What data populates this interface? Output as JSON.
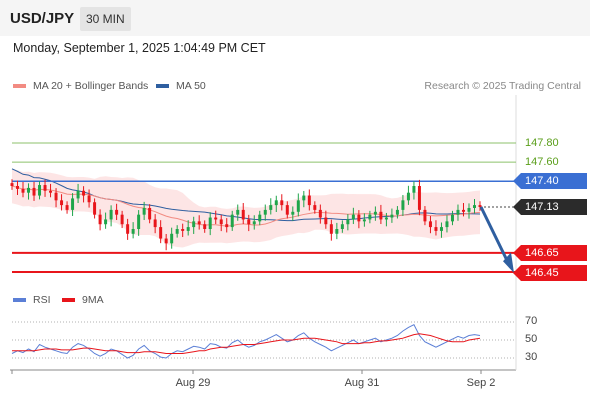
{
  "header": {
    "symbol": "USD/JPY",
    "timeframe": "30 MIN"
  },
  "datetime": "Monday, September 1, 2025 1:04:49 PM CET",
  "legend": {
    "items": [
      {
        "label": "MA 20 + Bollinger Bands",
        "color": "#f28b82"
      },
      {
        "label": "MA 50",
        "color": "#2f5fa0"
      }
    ],
    "credit": "Research © 2025 Trading Central"
  },
  "rsi_legend": {
    "items": [
      {
        "label": "RSI",
        "color": "#5b7fd6"
      },
      {
        "label": "9MA",
        "color": "#e8151b"
      }
    ]
  },
  "levels": {
    "r2": "147.80",
    "r1": "147.60",
    "pivot": "147.40",
    "last": "147.13",
    "s1": "146.65",
    "s2": "146.45"
  },
  "rsi_ticks": [
    "70",
    "50",
    "30"
  ],
  "x_ticks": [
    "Aug 29",
    "Aug 31",
    "Sep 2"
  ],
  "colors": {
    "up": "#1fa54a",
    "down": "#e8151b",
    "band": "#fde0e0",
    "ma20": "#f28b82",
    "ma50": "#2f5fa0",
    "support": "#e8151b",
    "pivot": "#3a6fd3",
    "resistance": "#8cc26b"
  },
  "chart_data": {
    "type": "candlestick",
    "price_range": [
      146.3,
      148.05
    ],
    "rsi_range": [
      20,
      80
    ],
    "horizontal_levels": [
      147.8,
      147.6,
      147.4,
      147.13,
      146.65,
      146.45
    ],
    "closes": [
      147.35,
      147.32,
      147.28,
      147.33,
      147.25,
      147.36,
      147.3,
      147.28,
      147.2,
      147.15,
      147.1,
      147.22,
      147.3,
      147.25,
      147.18,
      147.05,
      146.95,
      147.0,
      147.1,
      147.05,
      146.95,
      146.85,
      146.9,
      147.05,
      147.12,
      147.0,
      146.92,
      146.8,
      146.75,
      146.85,
      146.9,
      146.88,
      146.92,
      146.98,
      146.95,
      146.9,
      147.02,
      147.0,
      146.95,
      146.92,
      147.05,
      147.1,
      147.0,
      146.95,
      146.98,
      147.05,
      147.1,
      147.15,
      147.2,
      147.15,
      147.05,
      147.08,
      147.2,
      147.25,
      147.15,
      147.1,
      147.02,
      146.95,
      146.85,
      146.9,
      146.95,
      147.0,
      147.05,
      146.98,
      147.0,
      147.05,
      147.08,
      147.0,
      147.02,
      147.05,
      147.1,
      147.2,
      147.28,
      147.35,
      147.1,
      146.98,
      146.92,
      146.88,
      146.92,
      146.98,
      147.05,
      147.1,
      147.08,
      147.12,
      147.15,
      147.13
    ],
    "rsi": [
      35,
      38,
      36,
      40,
      37,
      45,
      42,
      40,
      38,
      36,
      35,
      42,
      46,
      44,
      40,
      35,
      32,
      35,
      40,
      38,
      34,
      30,
      33,
      40,
      44,
      38,
      35,
      31,
      30,
      35,
      38,
      37,
      40,
      43,
      42,
      40,
      46,
      45,
      42,
      41,
      47,
      50,
      45,
      42,
      44,
      48,
      50,
      53,
      56,
      52,
      48,
      50,
      55,
      58,
      52,
      48,
      45,
      42,
      38,
      41,
      44,
      47,
      50,
      46,
      48,
      50,
      52,
      48,
      50,
      52,
      55,
      60,
      64,
      67,
      55,
      48,
      45,
      42,
      45,
      48,
      51,
      54,
      52,
      55,
      56,
      55
    ],
    "rsi_ma": [
      38,
      38,
      38,
      38,
      38,
      39,
      40,
      40,
      40,
      39,
      39,
      39,
      40,
      41,
      41,
      40,
      39,
      38,
      38,
      38,
      37,
      36,
      36,
      36,
      37,
      37,
      37,
      36,
      35,
      35,
      35,
      35,
      36,
      37,
      38,
      38,
      40,
      41,
      42,
      42,
      43,
      44,
      45,
      45,
      45,
      46,
      47,
      48,
      49,
      50,
      50,
      50,
      51,
      52,
      52,
      52,
      51,
      50,
      49,
      48,
      46,
      46,
      46,
      46,
      47,
      47,
      48,
      49,
      49,
      50,
      51,
      52,
      54,
      56,
      57,
      56,
      55,
      53,
      51,
      49,
      48,
      48,
      48,
      50,
      51,
      52
    ]
  }
}
